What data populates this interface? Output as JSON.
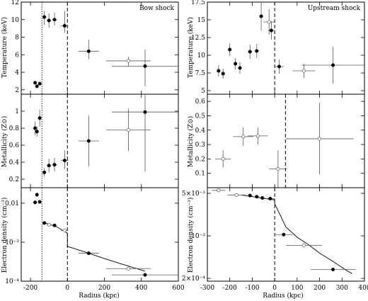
{
  "chart_data": [
    {
      "panel": "left-top",
      "type": "scatter",
      "yscale": "linear",
      "title": "Bow shock",
      "xlabel": "",
      "ylabel": "Temperature (keV)",
      "xlim": [
        -250,
        600
      ],
      "ylim": [
        1.5,
        12
      ],
      "xticks": [
        -200,
        0,
        200,
        400,
        600
      ],
      "xtick_labels": [
        "",
        "",
        "",
        "",
        ""
      ],
      "yticks": [
        2,
        4,
        6,
        8,
        10,
        12
      ],
      "ytick_labels": [
        "2",
        "4",
        "6",
        "8",
        "10",
        "12"
      ],
      "vlines": [
        {
          "x": -138,
          "style": "dotted"
        },
        {
          "x": 0,
          "style": "dashed"
        }
      ],
      "points": [
        {
          "x": -175,
          "xerr": 5,
          "y": 2.8,
          "yerr": [
            0.2,
            0.2
          ],
          "marker": "filled"
        },
        {
          "x": -165,
          "xerr": 5,
          "y": 2.4,
          "yerr": [
            0.2,
            0.2
          ],
          "marker": "filled"
        },
        {
          "x": -150,
          "xerr": 8,
          "y": 2.7,
          "yerr": [
            0.2,
            0.2
          ],
          "marker": "filled"
        },
        {
          "x": -125,
          "xerr": 10,
          "y": 10.3,
          "yerr": [
            0.9,
            0.7
          ],
          "marker": "filled"
        },
        {
          "x": -100,
          "xerr": 12,
          "y": 9.9,
          "yerr": [
            0.8,
            0.8
          ],
          "marker": "filled"
        },
        {
          "x": -70,
          "xerr": 14,
          "y": 10.0,
          "yerr": [
            0.7,
            0.8
          ],
          "marker": "filled"
        },
        {
          "x": -15,
          "xerr": 20,
          "y": 9.3,
          "yerr": [
            0.8,
            1.7
          ],
          "marker": "filled"
        },
        {
          "x": 115,
          "xerr": 55,
          "y": 6.4,
          "yerr": [
            0.9,
            1.3
          ],
          "marker": "filled"
        },
        {
          "x": 330,
          "xerr": 120,
          "y": 5.3,
          "yerr": [
            0.6,
            0.5
          ],
          "marker": "open"
        },
        {
          "x": 420,
          "xerr": 180,
          "y": 4.7,
          "yerr": [
            2.3,
            1.9
          ],
          "marker": "filled"
        }
      ]
    },
    {
      "panel": "left-middle",
      "type": "scatter",
      "yscale": "linear",
      "xlabel": "",
      "ylabel": "Metallicity (Z⊙)",
      "xlim": [
        -250,
        600
      ],
      "ylim": [
        0.1,
        1.2
      ],
      "xticks": [
        -200,
        0,
        200,
        400,
        600
      ],
      "xtick_labels": [
        "",
        "",
        "",
        "",
        ""
      ],
      "yticks": [
        0.2,
        0.4,
        0.6,
        0.8,
        1.0
      ],
      "ytick_labels": [
        "0.2",
        "0.4",
        "0.6",
        "0.8",
        "1"
      ],
      "vlines": [
        {
          "x": -138,
          "style": "dotted"
        },
        {
          "x": 0,
          "style": "dashed"
        }
      ],
      "points": [
        {
          "x": -175,
          "xerr": 5,
          "y": 0.8,
          "yerr": [
            0.08,
            0.08
          ],
          "marker": "filled"
        },
        {
          "x": -165,
          "xerr": 5,
          "y": 0.76,
          "yerr": [
            0.06,
            0.06
          ],
          "marker": "filled"
        },
        {
          "x": -150,
          "xerr": 8,
          "y": 0.92,
          "yerr": [
            0.1,
            0.1
          ],
          "marker": "filled"
        },
        {
          "x": -125,
          "xerr": 10,
          "y": 0.28,
          "yerr": [
            0.05,
            0.05
          ],
          "marker": "filled"
        },
        {
          "x": -100,
          "xerr": 12,
          "y": 0.36,
          "yerr": [
            0.08,
            0.08
          ],
          "marker": "filled"
        },
        {
          "x": -70,
          "xerr": 14,
          "y": 0.37,
          "yerr": [
            0.08,
            0.08
          ],
          "marker": "filled"
        },
        {
          "x": -15,
          "xerr": 20,
          "y": 0.42,
          "yerr": [
            0.1,
            0.12
          ],
          "marker": "filled"
        },
        {
          "x": 115,
          "xerr": 55,
          "y": 0.65,
          "yerr": [
            0.3,
            0.3
          ],
          "marker": "filled"
        },
        {
          "x": 330,
          "xerr": 120,
          "y": 0.78,
          "yerr": [
            0.25,
            0.25
          ],
          "marker": "open"
        },
        {
          "x": 420,
          "xerr": 180,
          "y": 0.99,
          "yerr": [
            0.7,
            0.35
          ],
          "marker": "filled"
        }
      ]
    },
    {
      "panel": "left-bottom",
      "type": "scatter",
      "yscale": "log",
      "xlabel": "Radius (kpc)",
      "ylabel": "Electron density (cm⁻³)",
      "xlim": [
        -250,
        600
      ],
      "ylim": [
        0.0001,
        0.025
      ],
      "xticks": [
        -200,
        0,
        200,
        400,
        600
      ],
      "xtick_labels": [
        "-200",
        "0",
        "200",
        "400",
        "600"
      ],
      "yticks": [
        0.0001,
        0.001,
        0.01
      ],
      "ytick_labels": [
        "10⁻⁴",
        "10⁻³",
        "0.01"
      ],
      "vlines": [
        {
          "x": -138,
          "style": "dotted"
        },
        {
          "x": 0,
          "style": "dashed"
        }
      ],
      "model": [
        [
          -130,
          0.0032
        ],
        [
          -60,
          0.0025
        ],
        [
          0,
          0.0017
        ],
        [
          0,
          0.00078
        ],
        [
          100,
          0.00055
        ],
        [
          200,
          0.00038
        ],
        [
          300,
          0.00027
        ],
        [
          420,
          0.00018
        ]
      ],
      "points": [
        {
          "x": -175,
          "xerr": 5,
          "y": 0.0105,
          "yerr": [
            0.0012,
            0.0012
          ],
          "marker": "filled"
        },
        {
          "x": -165,
          "xerr": 5,
          "y": 0.0165,
          "yerr": [
            0.002,
            0.002
          ],
          "marker": "filled"
        },
        {
          "x": -150,
          "xerr": 8,
          "y": 0.0108,
          "yerr": [
            0.0012,
            0.0012
          ],
          "marker": "filled"
        },
        {
          "x": -125,
          "xerr": 10,
          "y": 0.0031,
          "yerr": [
            0.0002,
            0.0002
          ],
          "marker": "filled"
        },
        {
          "x": -100,
          "xerr": 12,
          "y": 0.0028,
          "yerr": [
            0.0002,
            0.0002
          ],
          "marker": "open"
        },
        {
          "x": -70,
          "xerr": 14,
          "y": 0.0027,
          "yerr": [
            0.0002,
            0.0002
          ],
          "marker": "filled"
        },
        {
          "x": -15,
          "xerr": 20,
          "y": 0.002,
          "yerr": [
            0.0002,
            0.0002
          ],
          "marker": "open"
        },
        {
          "x": 115,
          "xerr": 55,
          "y": 0.00052,
          "yerr": [
            3e-05,
            3e-05
          ],
          "marker": "filled"
        },
        {
          "x": 330,
          "xerr": 120,
          "y": 0.00021,
          "yerr": [
            1e-05,
            1e-05
          ],
          "marker": "open"
        },
        {
          "x": 420,
          "xerr": 180,
          "y": 0.000145,
          "yerr": [
            1e-05,
            1e-05
          ],
          "marker": "filled"
        }
      ]
    },
    {
      "panel": "right-top",
      "type": "scatter",
      "yscale": "linear",
      "title": "Upstream shock",
      "xlabel": "",
      "ylabel": "Temperature (keV)",
      "xlim": [
        -300,
        400
      ],
      "ylim": [
        4.5,
        17.5
      ],
      "xticks": [
        -300,
        -200,
        -100,
        0,
        100,
        200,
        300,
        400
      ],
      "xtick_labels": [
        "",
        "",
        "",
        "",
        "",
        "",
        "",
        ""
      ],
      "yticks": [
        5,
        7.5,
        10,
        12.5,
        15,
        17.5
      ],
      "ytick_labels": [
        "5",
        "7.5",
        "10",
        "12.5",
        "15",
        "17.5"
      ],
      "vlines": [
        {
          "x": 0,
          "style": "dashed"
        }
      ],
      "points": [
        {
          "x": -250,
          "xerr": 8,
          "y": 7.8,
          "yerr": [
            0.8,
            0.8
          ],
          "marker": "filled"
        },
        {
          "x": -230,
          "xerr": 8,
          "y": 7.4,
          "yerr": [
            0.7,
            0.7
          ],
          "marker": "filled"
        },
        {
          "x": -200,
          "xerr": 8,
          "y": 10.8,
          "yerr": [
            0.9,
            0.9
          ],
          "marker": "filled"
        },
        {
          "x": -175,
          "xerr": 8,
          "y": 8.8,
          "yerr": [
            0.8,
            0.8
          ],
          "marker": "filled"
        },
        {
          "x": -155,
          "xerr": 8,
          "y": 8.2,
          "yerr": [
            0.8,
            0.8
          ],
          "marker": "filled"
        },
        {
          "x": -110,
          "xerr": 10,
          "y": 10.5,
          "yerr": [
            1.0,
            1.0
          ],
          "marker": "filled"
        },
        {
          "x": -80,
          "xerr": 10,
          "y": 10.6,
          "yerr": [
            1.0,
            1.0
          ],
          "marker": "filled"
        },
        {
          "x": -60,
          "xerr": 8,
          "y": 15.5,
          "yerr": [
            2.0,
            2.0
          ],
          "marker": "filled"
        },
        {
          "x": -25,
          "xerr": 25,
          "y": 14.7,
          "yerr": [
            1.8,
            1.8
          ],
          "marker": "open"
        },
        {
          "x": -15,
          "xerr": 15,
          "y": 13.5,
          "yerr": [
            1.3,
            1.3
          ],
          "marker": "filled"
        },
        {
          "x": 20,
          "xerr": 20,
          "y": 8.4,
          "yerr": [
            1.0,
            1.0
          ],
          "marker": "filled"
        },
        {
          "x": 130,
          "xerr": 50,
          "y": 7.8,
          "yerr": [
            1.0,
            1.0
          ],
          "marker": "open"
        },
        {
          "x": 260,
          "xerr": 140,
          "y": 8.6,
          "yerr": [
            2.6,
            2.6
          ],
          "marker": "filled"
        }
      ]
    },
    {
      "panel": "right-middle",
      "type": "scatter",
      "yscale": "linear",
      "xlabel": "",
      "ylabel": "Metallicity (Z⊙)",
      "xlim": [
        -300,
        400
      ],
      "ylim": [
        0.0,
        0.65
      ],
      "xticks": [
        -300,
        -200,
        -100,
        0,
        100,
        200,
        300,
        400
      ],
      "xtick_labels": [
        "",
        "",
        "",
        "",
        "",
        "",
        "",
        ""
      ],
      "yticks": [
        0.1,
        0.2,
        0.3,
        0.4,
        0.5,
        0.6
      ],
      "ytick_labels": [
        "0.1",
        "0.2",
        "0.3",
        "0.4",
        "0.5",
        "0.6"
      ],
      "vlines": [
        {
          "x": 48,
          "style": "dashed"
        }
      ],
      "points": [
        {
          "x": -230,
          "xerr": 35,
          "y": 0.2,
          "yerr": [
            0.06,
            0.06
          ],
          "marker": "open"
        },
        {
          "x": -140,
          "xerr": 45,
          "y": 0.355,
          "yerr": [
            0.065,
            0.065
          ],
          "marker": "open"
        },
        {
          "x": -75,
          "xerr": 45,
          "y": 0.36,
          "yerr": [
            0.06,
            0.06
          ],
          "marker": "open"
        },
        {
          "x": 15,
          "xerr": 40,
          "y": 0.13,
          "yerr": [
            0.13,
            0.13
          ],
          "marker": "open"
        },
        {
          "x": 200,
          "xerr": 150,
          "y": 0.34,
          "yerr": [
            0.25,
            0.25
          ],
          "marker": "open"
        }
      ]
    },
    {
      "panel": "right-bottom",
      "type": "scatter",
      "yscale": "log",
      "xlabel": "Radius (kpc)",
      "ylabel": "Electron density (cm⁻³)",
      "xlim": [
        -300,
        400
      ],
      "ylim": [
        0.00018,
        0.0062
      ],
      "xticks": [
        -300,
        -200,
        -100,
        0,
        100,
        200,
        300,
        400
      ],
      "xtick_labels": [
        "-300",
        "-200",
        "-100",
        "0",
        "100",
        "200",
        "300",
        "400"
      ],
      "yticks": [
        0.0002,
        0.001,
        0.005
      ],
      "ytick_labels": [
        "2×10⁻⁴",
        "10⁻³",
        "5×10⁻³"
      ],
      "vlines": [
        {
          "x": 0,
          "style": "dashed"
        }
      ],
      "model": [
        [
          -150,
          0.0047
        ],
        [
          -80,
          0.0043
        ],
        [
          0,
          0.0039
        ],
        [
          0,
          0.0034
        ],
        [
          50,
          0.0014
        ],
        [
          100,
          0.00095
        ],
        [
          150,
          0.00072
        ],
        [
          200,
          0.00052
        ],
        [
          260,
          0.00038
        ],
        [
          320,
          0.00027
        ],
        [
          345,
          0.00024
        ]
      ],
      "points": [
        {
          "x": -250,
          "xerr": 30,
          "y": 0.0056,
          "yerr": [
            0.0002,
            0.0002
          ],
          "marker": "open"
        },
        {
          "x": -170,
          "xerr": 40,
          "y": 0.0047,
          "yerr": [
            0.0002,
            0.0002
          ],
          "marker": "open"
        },
        {
          "x": -110,
          "xerr": 12,
          "y": 0.0046,
          "yerr": [
            0.0002,
            0.0002
          ],
          "marker": "filled"
        },
        {
          "x": -80,
          "xerr": 12,
          "y": 0.0044,
          "yerr": [
            0.0002,
            0.0002
          ],
          "marker": "filled"
        },
        {
          "x": -55,
          "xerr": 12,
          "y": 0.0042,
          "yerr": [
            0.0002,
            0.0002
          ],
          "marker": "filled"
        },
        {
          "x": -20,
          "xerr": 20,
          "y": 0.0041,
          "yerr": [
            0.0002,
            0.0002
          ],
          "marker": "filled"
        },
        {
          "x": 40,
          "xerr": 40,
          "y": 0.00105,
          "yerr": [
            8e-05,
            8e-05
          ],
          "marker": "filled"
        },
        {
          "x": 130,
          "xerr": 80,
          "y": 0.0007,
          "yerr": [
            6e-05,
            6e-05
          ],
          "marker": "open"
        },
        {
          "x": 260,
          "xerr": 100,
          "y": 0.00028,
          "yerr": [
            2e-05,
            2e-05
          ],
          "marker": "filled"
        }
      ]
    }
  ]
}
